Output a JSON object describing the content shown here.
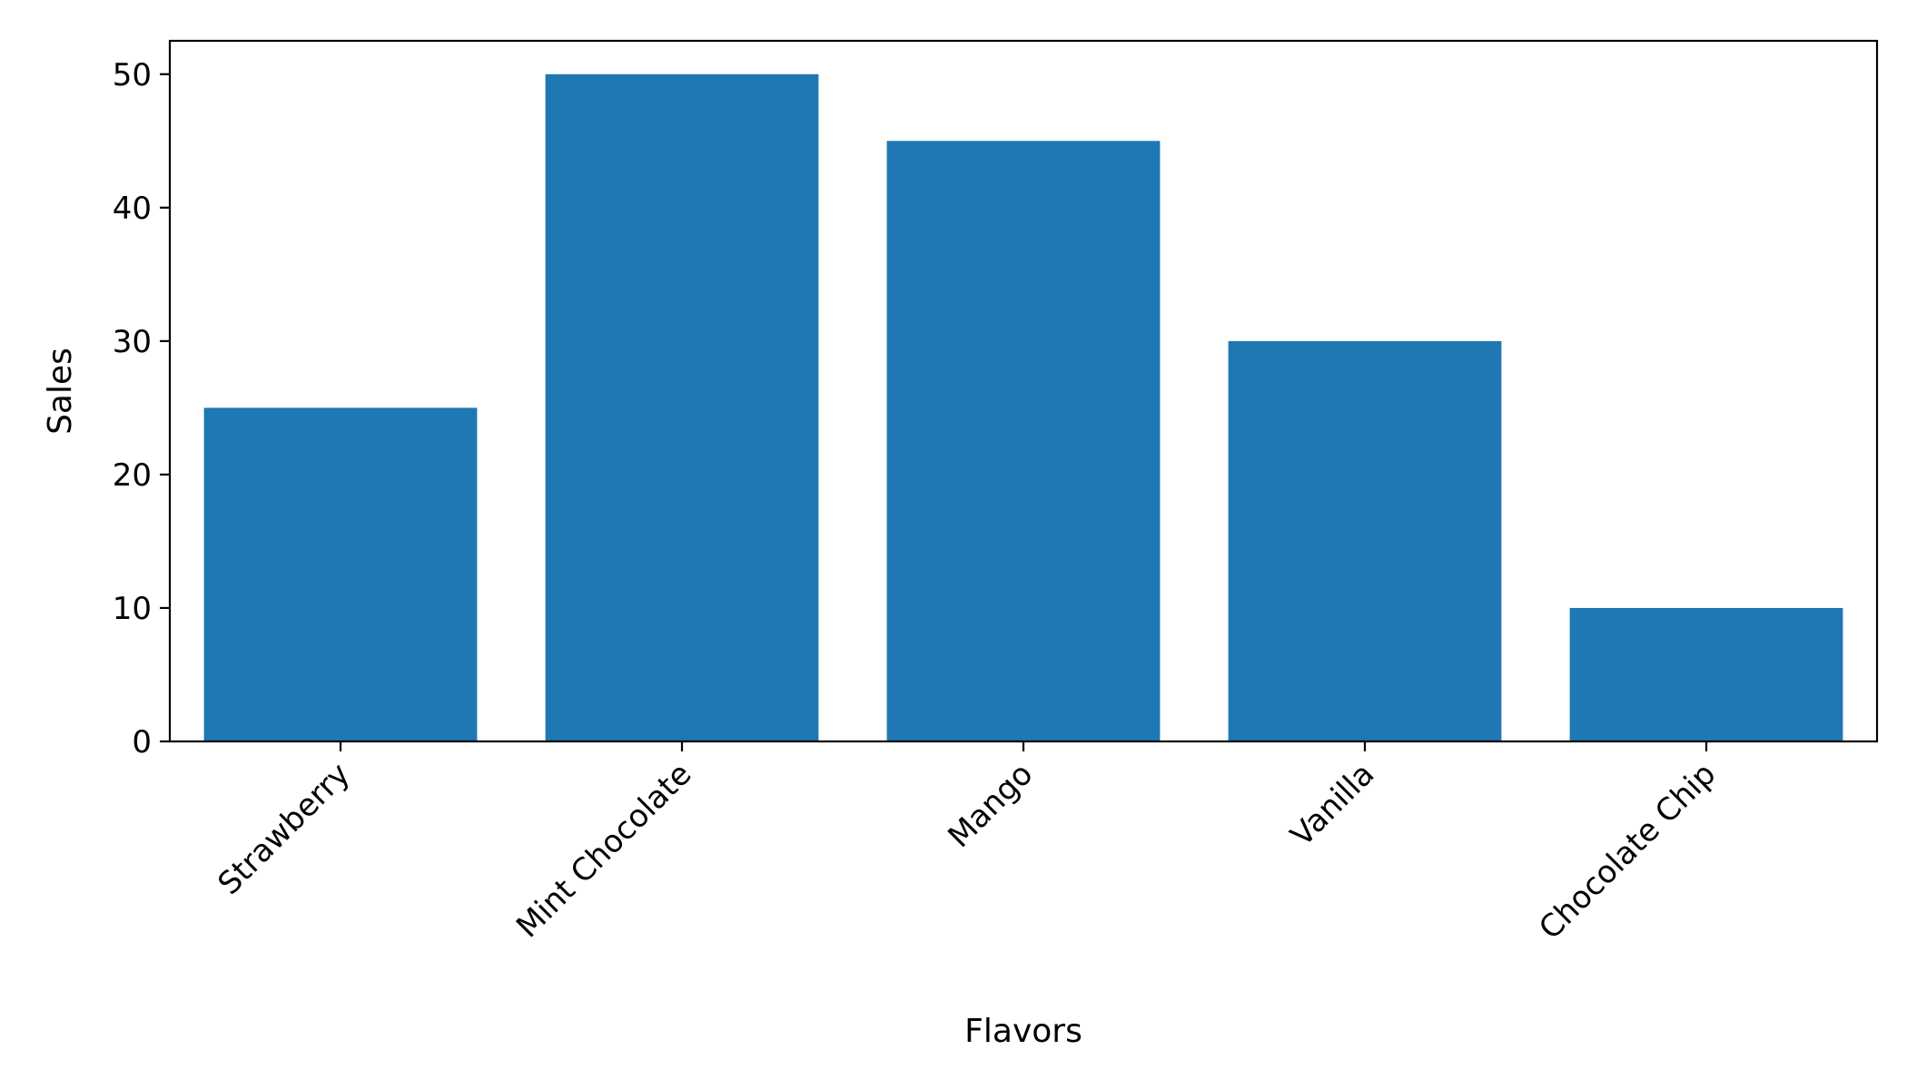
{
  "chart_data": {
    "type": "bar",
    "title": "",
    "xlabel": "Flavors",
    "ylabel": "Sales",
    "categories": [
      "Strawberry",
      "Mint Chocolate",
      "Mango",
      "Vanilla",
      "Chocolate Chip"
    ],
    "values": [
      25,
      50,
      45,
      30,
      10
    ],
    "ylim": [
      0,
      52.5
    ],
    "yticks": [
      0,
      10,
      20,
      30,
      40,
      50
    ],
    "bar_color": "#1f77b4",
    "grid": false,
    "legend": "none"
  }
}
